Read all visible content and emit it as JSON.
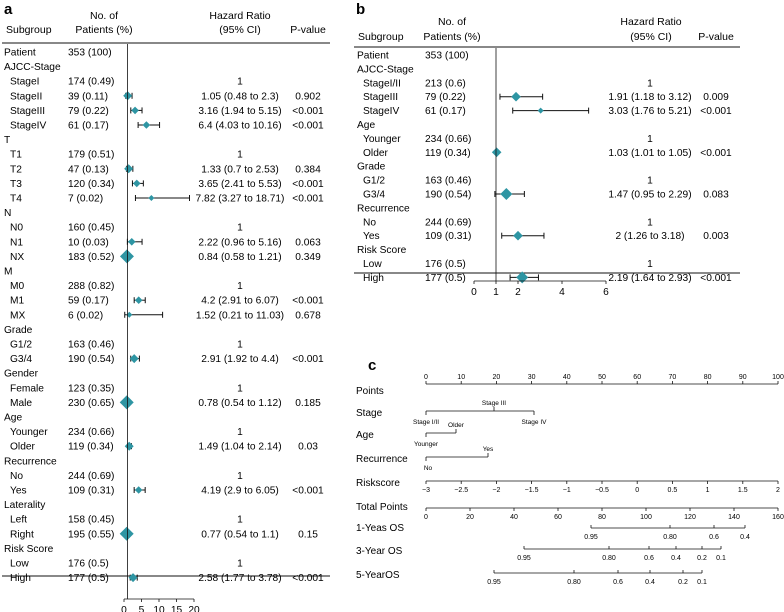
{
  "panels": {
    "a": {
      "label": "a",
      "headers": {
        "subgroup": "Subgroup",
        "patients_l1": "No. of",
        "patients_l2": "Patients (%)",
        "hr_l1": "Hazard Ratio",
        "hr_l2": "(95% CI)",
        "pval": "P-value"
      },
      "rows": [
        {
          "type": "row",
          "name": "Patient",
          "patients": "353 (100)",
          "hr_text": "",
          "pval": ""
        },
        {
          "type": "group",
          "name": "AJCC-Stage"
        },
        {
          "type": "row",
          "name": "StageI",
          "patients": "174 (0.49)",
          "hr_text": "1",
          "pval": ""
        },
        {
          "type": "row",
          "name": "StageII",
          "patients": "39 (0.11)",
          "hr_text": "1.05 (0.48 to 2.3)",
          "pval": "0.902"
        },
        {
          "type": "row",
          "name": "StageIII",
          "patients": "79 (0.22)",
          "hr_text": "3.16 (1.94 to 5.15)",
          "pval": "<0.001"
        },
        {
          "type": "row",
          "name": "StageIV",
          "patients": "61 (0.17)",
          "hr_text": "6.4 (4.03 to 10.16)",
          "pval": "<0.001"
        },
        {
          "type": "group",
          "name": "T"
        },
        {
          "type": "row",
          "name": "T1",
          "patients": "179 (0.51)",
          "hr_text": "1",
          "pval": ""
        },
        {
          "type": "row",
          "name": "T2",
          "patients": "47 (0.13)",
          "hr_text": "1.33 (0.7 to 2.53)",
          "pval": "0.384"
        },
        {
          "type": "row",
          "name": "T3",
          "patients": "120 (0.34)",
          "hr_text": "3.65 (2.41 to 5.53)",
          "pval": "<0.001"
        },
        {
          "type": "row",
          "name": "T4",
          "patients": "7 (0.02)",
          "hr_text": "7.82 (3.27 to 18.71)",
          "pval": "<0.001"
        },
        {
          "type": "group",
          "name": "N"
        },
        {
          "type": "row",
          "name": "N0",
          "patients": "160 (0.45)",
          "hr_text": "1",
          "pval": ""
        },
        {
          "type": "row",
          "name": "N1",
          "patients": "10 (0.03)",
          "hr_text": "2.22 (0.96 to 5.16)",
          "pval": "0.063"
        },
        {
          "type": "row",
          "name": "NX",
          "patients": "183 (0.52)",
          "hr_text": "0.84 (0.58 to 1.21)",
          "pval": "0.349"
        },
        {
          "type": "group",
          "name": "M"
        },
        {
          "type": "row",
          "name": "M0",
          "patients": "288 (0.82)",
          "hr_text": "1",
          "pval": ""
        },
        {
          "type": "row",
          "name": "M1",
          "patients": "59 (0.17)",
          "hr_text": "4.2 (2.91 to 6.07)",
          "pval": "<0.001"
        },
        {
          "type": "row",
          "name": "MX",
          "patients": "6 (0.02)",
          "hr_text": "1.52 (0.21 to 11.03)",
          "pval": "0.678"
        },
        {
          "type": "group",
          "name": "Grade"
        },
        {
          "type": "row",
          "name": "G1/2",
          "patients": "163 (0.46)",
          "hr_text": "1",
          "pval": ""
        },
        {
          "type": "row",
          "name": "G3/4",
          "patients": "190 (0.54)",
          "hr_text": "2.91 (1.92 to 4.4)",
          "pval": "<0.001"
        },
        {
          "type": "group",
          "name": "Gender"
        },
        {
          "type": "row",
          "name": "Female",
          "patients": "123 (0.35)",
          "hr_text": "1",
          "pval": ""
        },
        {
          "type": "row",
          "name": "Male",
          "patients": "230 (0.65)",
          "hr_text": "0.78 (0.54 to 1.12)",
          "pval": "0.185"
        },
        {
          "type": "group",
          "name": "Age"
        },
        {
          "type": "row",
          "name": "Younger",
          "patients": "234 (0.66)",
          "hr_text": "1",
          "pval": ""
        },
        {
          "type": "row",
          "name": "Older",
          "patients": "119 (0.34)",
          "hr_text": "1.49 (1.04 to 2.14)",
          "pval": "0.03"
        },
        {
          "type": "group",
          "name": "Recurrence"
        },
        {
          "type": "row",
          "name": "No",
          "patients": "244 (0.69)",
          "hr_text": "1",
          "pval": ""
        },
        {
          "type": "row",
          "name": "Yes",
          "patients": "109 (0.31)",
          "hr_text": "4.19 (2.9 to 6.05)",
          "pval": "<0.001"
        },
        {
          "type": "group",
          "name": "Laterality"
        },
        {
          "type": "row",
          "name": "Left",
          "patients": "158 (0.45)",
          "hr_text": "1",
          "pval": ""
        },
        {
          "type": "row",
          "name": "Right",
          "patients": "195 (0.55)",
          "hr_text": "0.77 (0.54 to 1.1)",
          "pval": "0.15"
        },
        {
          "type": "group",
          "name": "Risk Score"
        },
        {
          "type": "row",
          "name": "Low",
          "patients": "176 (0.5)",
          "hr_text": "1",
          "pval": ""
        },
        {
          "type": "row",
          "name": "High",
          "patients": "177 (0.5)",
          "hr_text": "2.58 (1.77 to 3.78)",
          "pval": "<0.001"
        }
      ],
      "axis_ticks": [
        "0",
        "5",
        "10",
        "15",
        "20"
      ]
    },
    "b": {
      "label": "b",
      "headers": {
        "subgroup": "Subgroup",
        "patients_l1": "No. of",
        "patients_l2": "Patients (%)",
        "hr_l1": "Hazard Ratio",
        "hr_l2": "(95% CI)",
        "pval": "P-value"
      },
      "rows": [
        {
          "type": "row",
          "name": "Patient",
          "patients": "353 (100)",
          "hr_text": "",
          "pval": ""
        },
        {
          "type": "group",
          "name": "AJCC-Stage"
        },
        {
          "type": "row",
          "name": "StageI/II",
          "patients": "213 (0.6)",
          "hr_text": "1",
          "pval": ""
        },
        {
          "type": "row",
          "name": "StageIII",
          "patients": "79 (0.22)",
          "hr_text": "1.91 (1.18 to 3.12)",
          "pval": "0.009"
        },
        {
          "type": "row",
          "name": "StageIV",
          "patients": "61 (0.17)",
          "hr_text": "3.03 (1.76 to 5.21)",
          "pval": "<0.001"
        },
        {
          "type": "group",
          "name": "Age"
        },
        {
          "type": "row",
          "name": "Younger",
          "patients": "234 (0.66)",
          "hr_text": "1",
          "pval": ""
        },
        {
          "type": "row",
          "name": "Older",
          "patients": "119 (0.34)",
          "hr_text": "1.03 (1.01 to 1.05)",
          "pval": "<0.001"
        },
        {
          "type": "group",
          "name": "Grade"
        },
        {
          "type": "row",
          "name": "G1/2",
          "patients": "163 (0.46)",
          "hr_text": "1",
          "pval": ""
        },
        {
          "type": "row",
          "name": "G3/4",
          "patients": "190 (0.54)",
          "hr_text": "1.47 (0.95 to 2.29)",
          "pval": "0.083"
        },
        {
          "type": "group",
          "name": "Recurrence"
        },
        {
          "type": "row",
          "name": "No",
          "patients": "244 (0.69)",
          "hr_text": "1",
          "pval": ""
        },
        {
          "type": "row",
          "name": "Yes",
          "patients": "109 (0.31)",
          "hr_text": "2 (1.26 to 3.18)",
          "pval": "0.003"
        },
        {
          "type": "group",
          "name": "Risk Score"
        },
        {
          "type": "row",
          "name": "Low",
          "patients": "176 (0.5)",
          "hr_text": "1",
          "pval": ""
        },
        {
          "type": "row",
          "name": "High",
          "patients": "177 (0.5)",
          "hr_text": "2.19 (1.64 to 2.93)",
          "pval": "<0.001"
        }
      ],
      "axis_ticks": [
        "0",
        "1",
        "2",
        "4",
        "6"
      ]
    },
    "c": {
      "label": "c",
      "rows": {
        "points": "Points",
        "stage": "Stage",
        "age": "Age",
        "recurrence": "Recurrence",
        "riskscore": "Riskscore",
        "total_points": "Total Points",
        "os1": "1-Yeas OS",
        "os3": "3-Year OS",
        "os5": "5-YearOS"
      },
      "points_ticks": [
        "0",
        "10",
        "20",
        "30",
        "40",
        "50",
        "60",
        "70",
        "80",
        "90",
        "100"
      ],
      "stage_labels": {
        "i_ii": "Stage I/II",
        "iii": "Stage III",
        "iv": "Stage IV"
      },
      "age_labels": {
        "younger": "Younger",
        "older": "Older"
      },
      "recurrence_labels": {
        "no": "No",
        "yes": "Yes"
      },
      "risk_ticks": [
        "−3",
        "−2.5",
        "−2",
        "−1.5",
        "−1",
        "−0.5",
        "0",
        "0.5",
        "1",
        "1.5",
        "2"
      ],
      "total_ticks": [
        "0",
        "20",
        "40",
        "60",
        "80",
        "100",
        "120",
        "140",
        "160"
      ],
      "os1_ticks": [
        "0.95",
        "0.80",
        "0.6",
        "0.4"
      ],
      "os3_ticks": [
        "0.95",
        "0.80",
        "0.6",
        "0.4",
        "0.2",
        "0.1"
      ],
      "os5_ticks": [
        "0.95",
        "0.80",
        "0.6",
        "0.4",
        "0.2",
        "0.1"
      ]
    }
  },
  "colors": {
    "marker": "#2e95a3",
    "line": "#111111"
  },
  "chart_data": [
    {
      "type": "forest",
      "title": "a",
      "xlabel": "Hazard Ratio",
      "xlim": [
        0,
        20
      ],
      "categories": [
        "StageII",
        "StageIII",
        "StageIV",
        "T2",
        "T3",
        "T4",
        "N1",
        "NX",
        "M1",
        "MX",
        "G3/4",
        "Male",
        "Older",
        "Yes",
        "Right",
        "High"
      ],
      "hr": [
        1.05,
        3.16,
        6.4,
        1.33,
        3.65,
        7.82,
        2.22,
        0.84,
        4.2,
        1.52,
        2.91,
        0.78,
        1.49,
        4.19,
        0.77,
        2.58
      ],
      "lower": [
        0.48,
        1.94,
        4.03,
        0.7,
        2.41,
        3.27,
        0.96,
        0.58,
        2.91,
        0.21,
        1.92,
        0.54,
        1.04,
        2.9,
        0.54,
        1.77
      ],
      "upper": [
        2.3,
        5.15,
        10.16,
        2.53,
        5.53,
        18.71,
        5.16,
        1.21,
        6.07,
        11.03,
        4.4,
        1.12,
        2.14,
        6.05,
        1.1,
        3.78
      ]
    },
    {
      "type": "forest",
      "title": "b",
      "xlabel": "Hazard Ratio",
      "xlim": [
        0,
        6
      ],
      "categories": [
        "StageIII",
        "StageIV",
        "Older",
        "G3/4",
        "Yes",
        "High"
      ],
      "hr": [
        1.91,
        3.03,
        1.03,
        1.47,
        2,
        2.19
      ],
      "lower": [
        1.18,
        1.76,
        1.01,
        0.95,
        1.26,
        1.64
      ],
      "upper": [
        3.12,
        5.21,
        1.05,
        2.29,
        3.18,
        2.93
      ]
    },
    {
      "type": "nomogram",
      "title": "c",
      "points_range": [
        0,
        100
      ],
      "total_points_range": [
        0,
        160
      ],
      "variables": [
        "Stage",
        "Age",
        "Recurrence",
        "Riskscore"
      ]
    }
  ]
}
